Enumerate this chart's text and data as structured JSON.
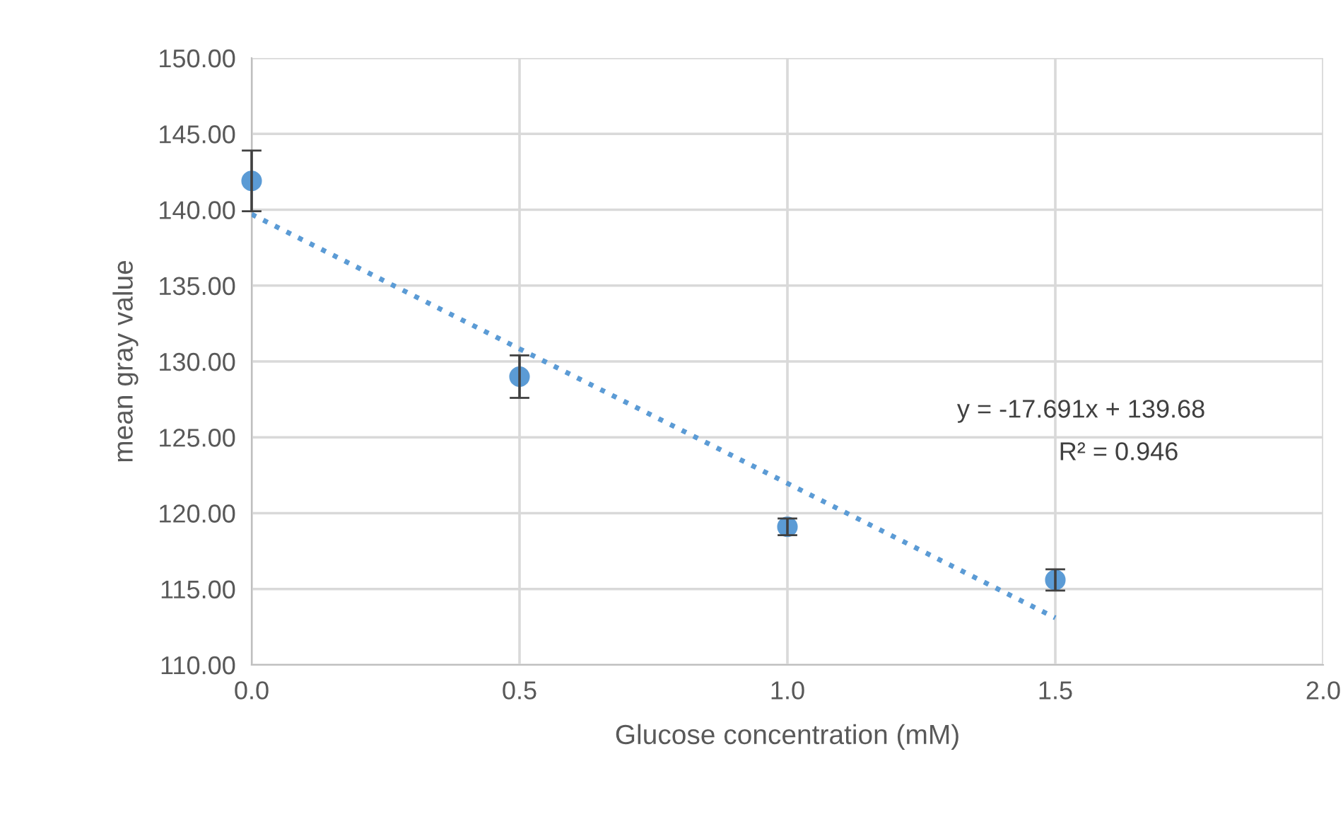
{
  "chart_data": {
    "type": "scatter",
    "xlabel": "Glucose concentration (mM)",
    "ylabel": "mean gray value",
    "xlim": [
      0,
      2
    ],
    "xticks": [
      {
        "value": 0,
        "label": "0.0"
      },
      {
        "value": 0.5,
        "label": "0.5"
      },
      {
        "value": 1,
        "label": "1.0"
      },
      {
        "value": 1.5,
        "label": "1.5"
      },
      {
        "value": 2,
        "label": "2.0"
      }
    ],
    "ylim": [
      110,
      150
    ],
    "yticks": [
      {
        "value": 110,
        "label": "110.00"
      },
      {
        "value": 115,
        "label": "115.00"
      },
      {
        "value": 120,
        "label": "120.00"
      },
      {
        "value": 125,
        "label": "125.00"
      },
      {
        "value": 130,
        "label": "130.00"
      },
      {
        "value": 135,
        "label": "135.00"
      },
      {
        "value": 140,
        "label": "140.00"
      },
      {
        "value": 145,
        "label": "145.00"
      },
      {
        "value": 150,
        "label": "150.00"
      }
    ],
    "grid": true,
    "legend": false,
    "marker": "circle",
    "annotations": [
      "y = -17.691x + 139.68",
      "R² = 0.946"
    ],
    "series": [
      {
        "color": "#5b9bd5",
        "x": [
          0,
          0.5,
          1,
          1.5
        ],
        "values": [
          141.9,
          129.0,
          119.1,
          115.6
        ],
        "errors": [
          2.0,
          1.4,
          0.55,
          0.7
        ]
      },
      {
        "type": "line",
        "color": "#5b9bd5",
        "line_style": "dotted",
        "marker": "none",
        "x": [
          0,
          1.5
        ],
        "values": [
          139.7,
          113.1
        ]
      }
    ]
  }
}
